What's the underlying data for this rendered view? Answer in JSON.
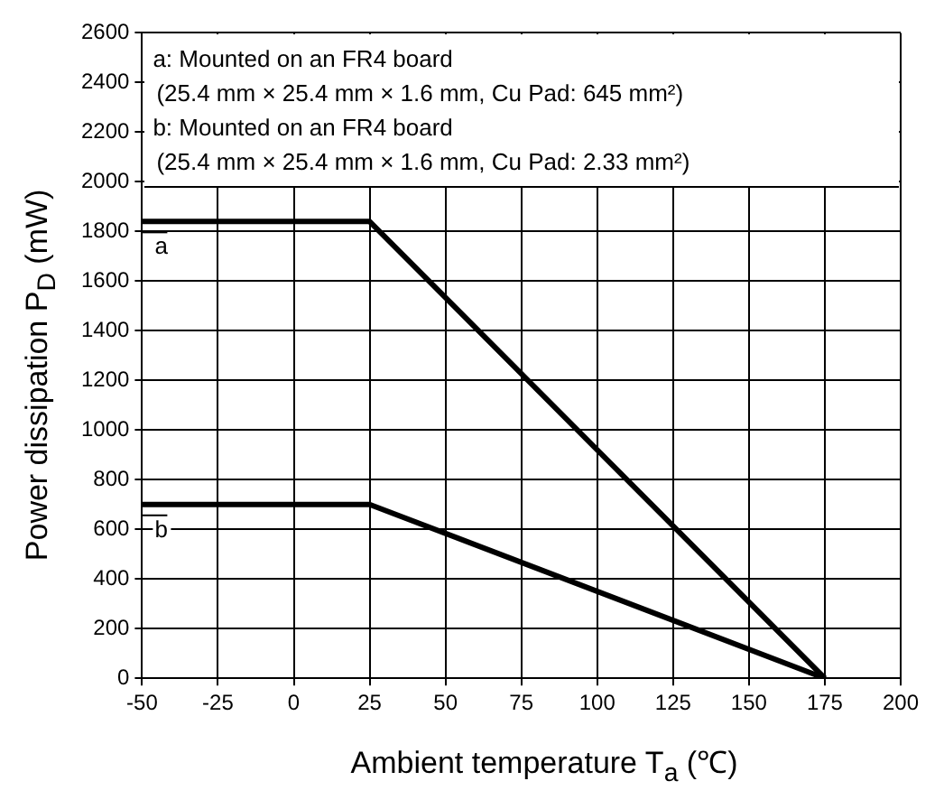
{
  "chart_data": {
    "type": "line",
    "xlabel": "Ambient temperature  T$_{a}$  (℃)",
    "ylabel": "Power dissipation  P$_{D}$  (mW)",
    "xlim": [
      -50,
      200
    ],
    "xticks": [
      -50,
      -25,
      0,
      25,
      50,
      75,
      100,
      125,
      150,
      175,
      200
    ],
    "ylim": [
      0,
      2600
    ],
    "yticks": [
      0,
      200,
      400,
      600,
      800,
      1000,
      1200,
      1400,
      1600,
      1800,
      2000,
      2200,
      2400,
      2600
    ],
    "grid": true,
    "legend": false,
    "marker": "none",
    "line_style": "solid",
    "annotations": [
      "a: Mounted on an FR4 board",
      "(25.4 mm × 25.4 mm × 1.6 mm, Cu Pad: 645 mm²)",
      "b: Mounted on an FR4 board",
      "(25.4 mm × 25.4 mm × 1.6 mm, Cu Pad: 2.33 mm²)"
    ],
    "series": [
      {
        "name": "a",
        "color": "#000000",
        "x": [
          -50,
          25,
          175
        ],
        "values": [
          1840,
          1840,
          0
        ]
      },
      {
        "name": "b",
        "color": "#000000",
        "x": [
          -50,
          25,
          175
        ],
        "values": [
          700,
          700,
          0
        ]
      }
    ]
  }
}
